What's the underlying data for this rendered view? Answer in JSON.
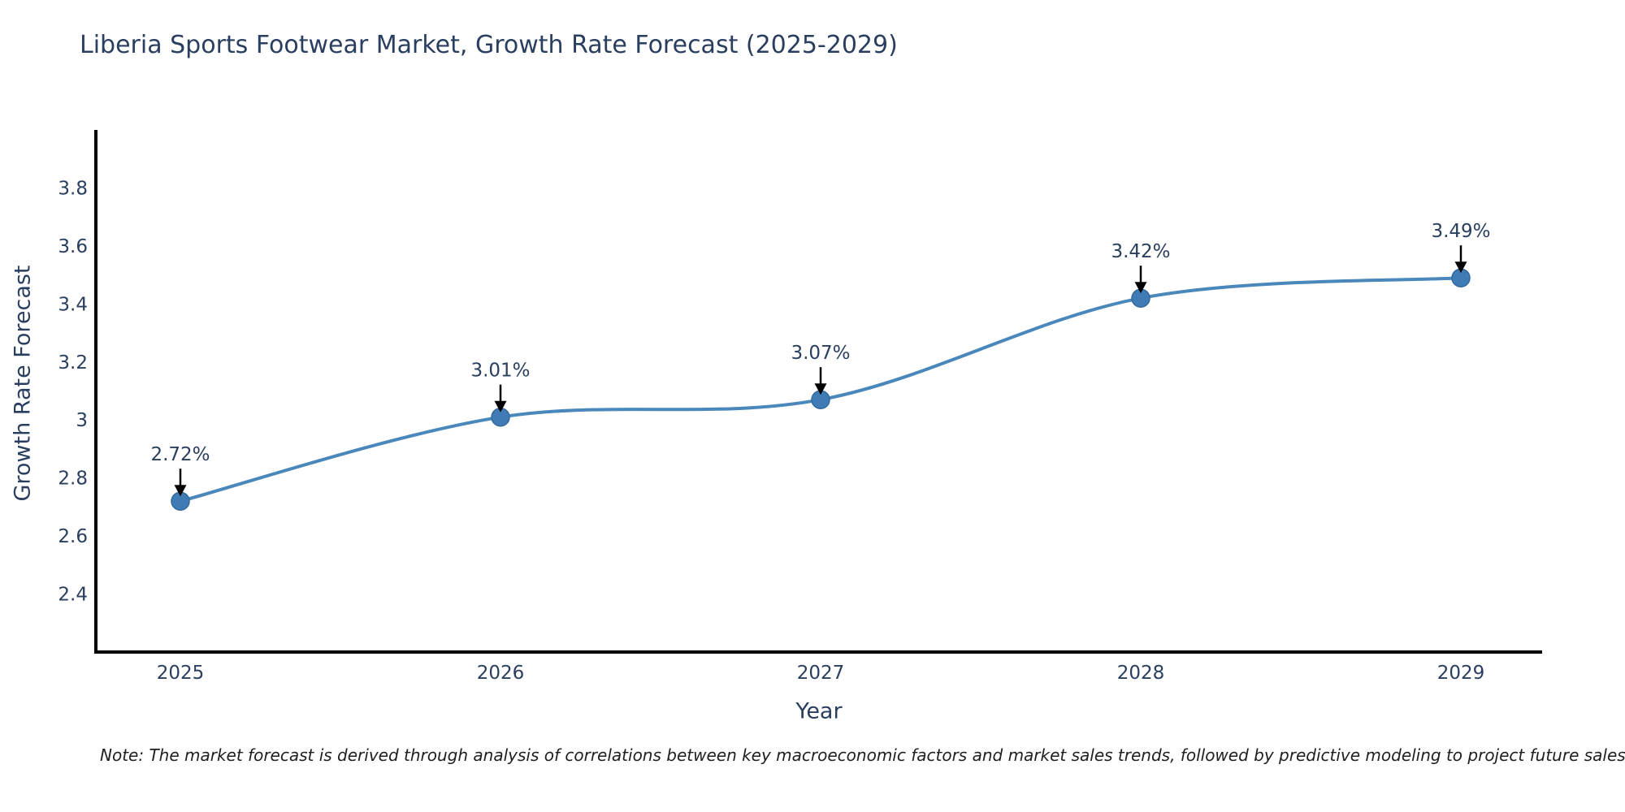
{
  "title": "Liberia Sports Footwear Market, Growth Rate Forecast (2025-2029)",
  "note": "Note: The market forecast is derived through analysis of correlations between key macroeconomic factors and market sales trends, followed by predictive modeling to project future sales",
  "chart_data": {
    "type": "line",
    "title": "Liberia Sports Footwear Market, Growth Rate Forecast (2025-2029)",
    "xlabel": "Year",
    "ylabel": "Growth Rate Forecast",
    "x": [
      2025,
      2026,
      2027,
      2028,
      2029
    ],
    "series": [
      {
        "name": "Growth Rate Forecast",
        "values": [
          2.72,
          3.01,
          3.07,
          3.42,
          3.49
        ]
      }
    ],
    "point_labels": [
      "2.72%",
      "3.01%",
      "3.07%",
      "3.42%",
      "3.49%"
    ],
    "yticks": [
      2.4,
      2.6,
      2.8,
      3,
      3.2,
      3.4,
      3.6,
      3.8
    ],
    "ylim": [
      2.2,
      4.0
    ],
    "line_shape": "spline",
    "grid": false,
    "legend_visible": false,
    "colors": {
      "line": "#4a87bb",
      "marker": "#3f7cb6",
      "marker_stroke": "#35699b",
      "axis": "#000000",
      "text": "#2a3f5f",
      "annotation_arrow": "#000000",
      "background": "#ffffff"
    }
  }
}
